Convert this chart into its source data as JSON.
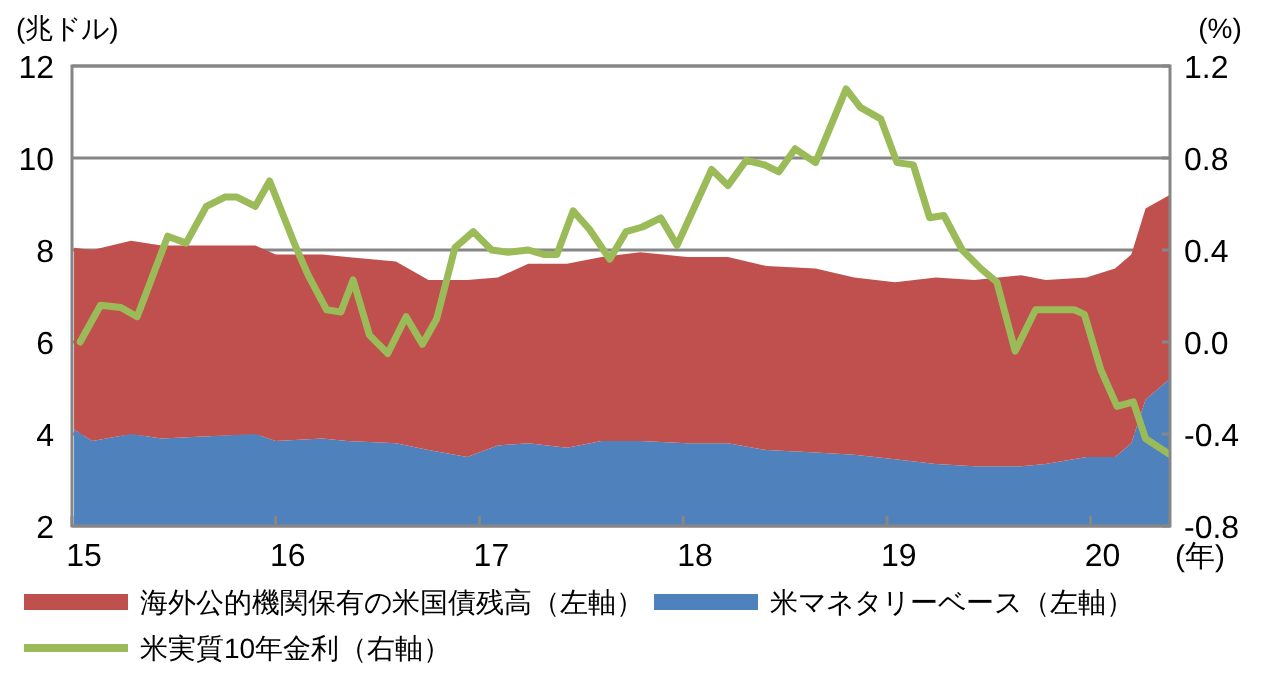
{
  "chart_data": {
    "type": "area",
    "stacked": true,
    "xlabel": "(年)",
    "ylabel": "(兆ドル)",
    "y2label": "(%)",
    "xlim": [
      2015,
      2020.39
    ],
    "xticks": [
      {
        "value": 2015,
        "label": "15"
      },
      {
        "value": 2016,
        "label": "16"
      },
      {
        "value": 2017,
        "label": "17"
      },
      {
        "value": 2018,
        "label": "18"
      },
      {
        "value": 2019,
        "label": "19"
      },
      {
        "value": 2020,
        "label": "20"
      }
    ],
    "ylim": [
      2,
      12
    ],
    "yticks": [
      2,
      4,
      6,
      8,
      10,
      12
    ],
    "y2lim": [
      -0.8,
      1.2
    ],
    "y2ticks": [
      {
        "value": -0.8,
        "label": "-0.8"
      },
      {
        "value": -0.4,
        "label": "-0.4"
      },
      {
        "value": 0,
        "label": "0.0"
      },
      {
        "value": 0.4,
        "label": "0.4"
      },
      {
        "value": 0.8,
        "label": "0.8"
      },
      {
        "value": 1.2,
        "label": "1.2"
      }
    ],
    "grid": "y",
    "legend": "bottom",
    "series": [
      {
        "name": "米マネタリーベース（左軸）",
        "type": "area",
        "color": "#4f81bd",
        "x": [
          2015.01,
          2015.1,
          2015.29,
          2015.44,
          2015.9,
          2016.0,
          2016.23,
          2016.35,
          2016.59,
          2016.75,
          2016.94,
          2017.09,
          2017.24,
          2017.43,
          2017.6,
          2017.79,
          2018.02,
          2018.22,
          2018.41,
          2018.65,
          2018.84,
          2019.04,
          2019.24,
          2019.43,
          2019.66,
          2019.78,
          2019.98,
          2020.12,
          2020.2,
          2020.27,
          2020.39
        ],
        "values": [
          4.1,
          3.85,
          4.0,
          3.9,
          4.0,
          3.85,
          3.9,
          3.85,
          3.8,
          3.65,
          3.5,
          3.75,
          3.8,
          3.7,
          3.85,
          3.85,
          3.8,
          3.8,
          3.65,
          3.6,
          3.55,
          3.45,
          3.35,
          3.3,
          3.3,
          3.35,
          3.5,
          3.5,
          3.8,
          4.75,
          5.2
        ]
      },
      {
        "name": "海外公的機関保有の米国債残高（左軸）",
        "type": "area",
        "color": "#c0504d",
        "x": [
          2015.01,
          2015.1,
          2015.29,
          2015.44,
          2015.9,
          2016.0,
          2016.23,
          2016.35,
          2016.59,
          2016.75,
          2016.94,
          2017.09,
          2017.24,
          2017.43,
          2017.6,
          2017.79,
          2018.02,
          2018.22,
          2018.41,
          2018.65,
          2018.84,
          2019.04,
          2019.24,
          2019.43,
          2019.66,
          2019.78,
          2019.98,
          2020.12,
          2020.2,
          2020.27,
          2020.39
        ],
        "values": [
          3.95,
          4.15,
          4.2,
          4.2,
          4.1,
          4.05,
          4.0,
          4.0,
          3.95,
          3.7,
          3.85,
          3.65,
          3.9,
          4.0,
          4.0,
          4.1,
          4.05,
          4.05,
          4.0,
          4.0,
          3.85,
          3.85,
          4.05,
          4.05,
          4.15,
          4.0,
          3.9,
          4.1,
          4.1,
          4.15,
          4.0
        ]
      },
      {
        "name": "米実質10年金利（右軸）",
        "type": "line",
        "axis": "y2",
        "color": "#9bbb59",
        "x": [
          2015.04,
          2015.14,
          2015.24,
          2015.32,
          2015.47,
          2015.56,
          2015.66,
          2015.75,
          2015.81,
          2015.9,
          2015.97,
          2016.1,
          2016.16,
          2016.25,
          2016.32,
          2016.38,
          2016.46,
          2016.55,
          2016.64,
          2016.72,
          2016.79,
          2016.88,
          2016.97,
          2017.06,
          2017.14,
          2017.24,
          2017.32,
          2017.38,
          2017.46,
          2017.54,
          2017.64,
          2017.72,
          2017.8,
          2017.89,
          2017.97,
          2018.14,
          2018.22,
          2018.31,
          2018.4,
          2018.47,
          2018.55,
          2018.65,
          2018.8,
          2018.87,
          2018.97,
          2019.05,
          2019.13,
          2019.21,
          2019.28,
          2019.37,
          2019.46,
          2019.54,
          2019.63,
          2019.73,
          2019.8,
          2019.92,
          2019.97,
          2020.05,
          2020.13,
          2020.21,
          2020.27,
          2020.39
        ],
        "values": [
          0.0,
          0.16,
          0.15,
          0.11,
          0.46,
          0.43,
          0.59,
          0.63,
          0.63,
          0.59,
          0.7,
          0.41,
          0.29,
          0.14,
          0.13,
          0.27,
          0.03,
          -0.05,
          0.11,
          -0.01,
          0.1,
          0.41,
          0.48,
          0.4,
          0.39,
          0.4,
          0.38,
          0.38,
          0.57,
          0.49,
          0.36,
          0.48,
          0.5,
          0.54,
          0.42,
          0.75,
          0.68,
          0.79,
          0.77,
          0.74,
          0.84,
          0.78,
          1.1,
          1.02,
          0.97,
          0.78,
          0.77,
          0.54,
          0.55,
          0.4,
          0.32,
          0.26,
          -0.04,
          0.14,
          0.14,
          0.14,
          0.12,
          -0.12,
          -0.28,
          -0.26,
          -0.42,
          -0.49
        ]
      }
    ]
  }
}
